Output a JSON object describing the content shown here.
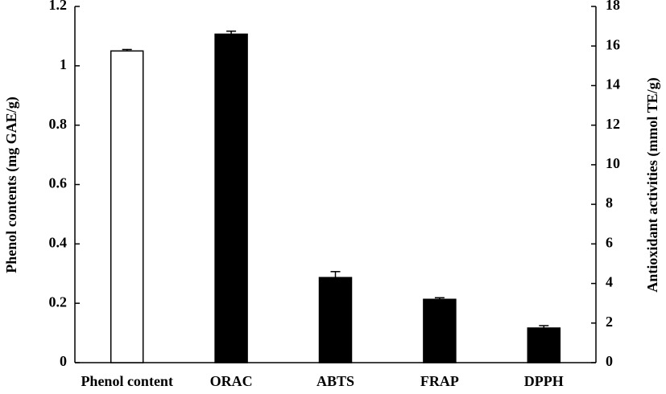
{
  "chart_data": {
    "type": "bar",
    "categories": [
      "Phenol content",
      "ORAC",
      "ABTS",
      "FRAP",
      "DPPH"
    ],
    "y_label": "Phenol contents (mg GAE/g)",
    "y2_label": "Antioxidant activities (mmol TE/g)",
    "ylim": [
      0,
      1.2
    ],
    "yticks": [
      0,
      0.2,
      0.4,
      0.6,
      0.8,
      1,
      1.2
    ],
    "y2lim": [
      0,
      18
    ],
    "y2ticks": [
      0,
      2,
      4,
      6,
      8,
      10,
      12,
      14,
      16,
      18
    ],
    "grid": false,
    "series": [
      {
        "color": "#ffffff",
        "axis": "y",
        "values": [
          1.05,
          null,
          null,
          null,
          null
        ],
        "errors": [
          0.005,
          null,
          null,
          null,
          null
        ]
      },
      {
        "color": "#000000",
        "axis": "y2",
        "values": [
          null,
          16.6,
          4.3,
          3.2,
          1.75
        ],
        "errors": [
          null,
          0.15,
          0.3,
          0.08,
          0.12
        ]
      }
    ]
  }
}
